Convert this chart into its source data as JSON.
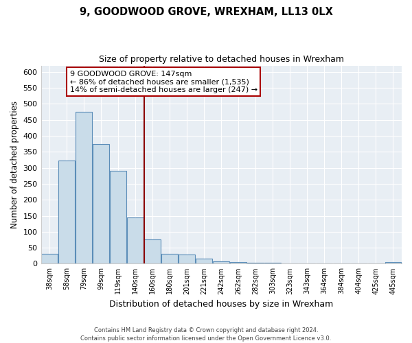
{
  "title": "9, GOODWOOD GROVE, WREXHAM, LL13 0LX",
  "subtitle": "Size of property relative to detached houses in Wrexham",
  "xlabel": "Distribution of detached houses by size in Wrexham",
  "ylabel": "Number of detached properties",
  "bar_labels": [
    "38sqm",
    "58sqm",
    "79sqm",
    "99sqm",
    "119sqm",
    "140sqm",
    "160sqm",
    "180sqm",
    "201sqm",
    "221sqm",
    "242sqm",
    "262sqm",
    "282sqm",
    "303sqm",
    "323sqm",
    "343sqm",
    "364sqm",
    "384sqm",
    "404sqm",
    "425sqm",
    "445sqm"
  ],
  "bar_heights": [
    32,
    322,
    475,
    375,
    290,
    145,
    75,
    32,
    29,
    16,
    8,
    5,
    4,
    2,
    1,
    0,
    0,
    0,
    0,
    0,
    5
  ],
  "bar_color": "#c9dce9",
  "bar_edge_color": "#5b8db8",
  "vline_x": 5.5,
  "vline_color": "#8b0000",
  "ylim": [
    0,
    620
  ],
  "yticks": [
    0,
    50,
    100,
    150,
    200,
    250,
    300,
    350,
    400,
    450,
    500,
    550,
    600
  ],
  "annotation_title": "9 GOODWOOD GROVE: 147sqm",
  "annotation_line1": "← 86% of detached houses are smaller (1,535)",
  "annotation_line2": "14% of semi-detached houses are larger (247) →",
  "annotation_box_color": "#ffffff",
  "annotation_box_edge": "#aa0000",
  "footnote1": "Contains HM Land Registry data © Crown copyright and database right 2024.",
  "footnote2": "Contains public sector information licensed under the Open Government Licence v3.0.",
  "plot_bg_color": "#e8eef4",
  "fig_bg_color": "#ffffff",
  "grid_color": "#ffffff"
}
